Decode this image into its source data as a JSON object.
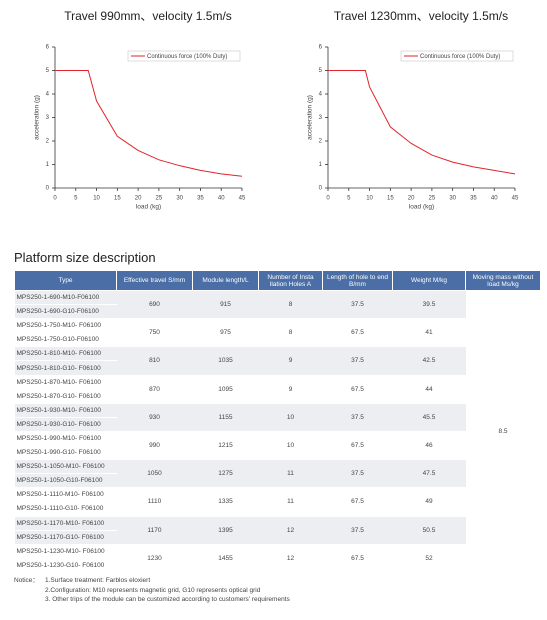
{
  "chart_data": [
    {
      "type": "line",
      "title": "Travel 990mm、velocity 1.5m/s",
      "x_label": "load (kg)",
      "y_label": "acceleration (g)",
      "x": [
        0,
        8,
        10,
        15,
        20,
        25,
        30,
        35,
        40,
        45
      ],
      "series": [
        {
          "name": "Continuous force (100% Duty)",
          "color": "#e0252b",
          "values": [
            5,
            5,
            3.7,
            2.2,
            1.6,
            1.2,
            0.95,
            0.75,
            0.6,
            0.5
          ]
        }
      ],
      "xlim": [
        0,
        45
      ],
      "xticks": [
        0,
        5,
        10,
        15,
        20,
        25,
        30,
        35,
        40,
        45
      ],
      "ylim": [
        0,
        6
      ],
      "yticks": [
        0,
        1,
        2,
        3,
        4,
        5,
        6
      ],
      "legend": "upper right"
    },
    {
      "type": "line",
      "title": "Travel 1230mm、velocity 1.5m/s",
      "x_label": "load (kg)",
      "y_label": "acceleration (g)",
      "x": [
        0,
        9,
        10,
        15,
        20,
        25,
        30,
        35,
        40,
        45
      ],
      "series": [
        {
          "name": "Continuous force (100% Duty)",
          "color": "#e0252b",
          "values": [
            5,
            5,
            4.3,
            2.6,
            1.9,
            1.4,
            1.1,
            0.9,
            0.75,
            0.6
          ]
        }
      ],
      "xlim": [
        0,
        45
      ],
      "xticks": [
        0,
        5,
        10,
        15,
        20,
        25,
        30,
        35,
        40,
        45
      ],
      "ylim": [
        0,
        6
      ],
      "yticks": [
        0,
        1,
        2,
        3,
        4,
        5,
        6
      ],
      "legend": "upper right"
    }
  ],
  "section_title": "Platform size description",
  "table": {
    "header": [
      "Type",
      "Effective travel S/mm",
      "Module length/L",
      "Number of Insta llation Holes A",
      "Length of hole to end B/mm",
      "Weight M/kg",
      "Moving mass without load Ms/kg"
    ],
    "moving_mass": "8.5",
    "groups": [
      {
        "types": [
          "MPS250-1-690-M10-F06100",
          "MPS250-1-690-G10-F06100"
        ],
        "travel": "690",
        "length": "915",
        "holes": "8",
        "hole_to_end": "37.5",
        "weight": "39.5"
      },
      {
        "types": [
          "MPS250-1-750-M10- F06100",
          "MPS250-1-750-G10-F06100"
        ],
        "travel": "750",
        "length": "975",
        "holes": "8",
        "hole_to_end": "67.5",
        "weight": "41"
      },
      {
        "types": [
          "MPS250-1-810-M10- F06100",
          "MPS250-1-810-G10- F06100"
        ],
        "travel": "810",
        "length": "1035",
        "holes": "9",
        "hole_to_end": "37.5",
        "weight": "42.5"
      },
      {
        "types": [
          "MPS250-1-870-M10- F06100",
          "MPS250-1-870-G10- F06100"
        ],
        "travel": "870",
        "length": "1095",
        "holes": "9",
        "hole_to_end": "67.5",
        "weight": "44"
      },
      {
        "types": [
          "MPS250-1-930-M10- F06100",
          "MPS250-1-930-G10- F06100"
        ],
        "travel": "930",
        "length": "1155",
        "holes": "10",
        "hole_to_end": "37.5",
        "weight": "45.5"
      },
      {
        "types": [
          "MPS250-1-990-M10- F06100",
          "MPS250-1-990-G10- F06100"
        ],
        "travel": "990",
        "length": "1215",
        "holes": "10",
        "hole_to_end": "67.5",
        "weight": "46"
      },
      {
        "types": [
          "MPS250-1-1050-M10- F06100",
          "MPS250-1-1050-G10-F06100"
        ],
        "travel": "1050",
        "length": "1275",
        "holes": "11",
        "hole_to_end": "37.5",
        "weight": "47.5"
      },
      {
        "types": [
          "MPS250-1-1110-M10- F06100",
          "MPS250-1-1110-G10- F06100"
        ],
        "travel": "1110",
        "length": "1335",
        "holes": "11",
        "hole_to_end": "67.5",
        "weight": "49"
      },
      {
        "types": [
          "MPS250-1-1170-M10- F06100",
          "MPS250-1-1170-G10- F06100"
        ],
        "travel": "1170",
        "length": "1395",
        "holes": "12",
        "hole_to_end": "37.5",
        "weight": "50.5"
      },
      {
        "types": [
          "MPS250-1-1230-M10- F06100",
          "MPS250-1-1230-G10- F06100"
        ],
        "travel": "1230",
        "length": "1455",
        "holes": "12",
        "hole_to_end": "67.5",
        "weight": "52"
      }
    ]
  },
  "notice": {
    "label": "Notice：",
    "items": [
      "1.Surface treatment: Farblos eloxiert",
      "2.Configuration: M10 represents magnetic grid, G10 represents optical grid",
      "3. Other trips of the module can be customized according to customers' requirements"
    ]
  }
}
